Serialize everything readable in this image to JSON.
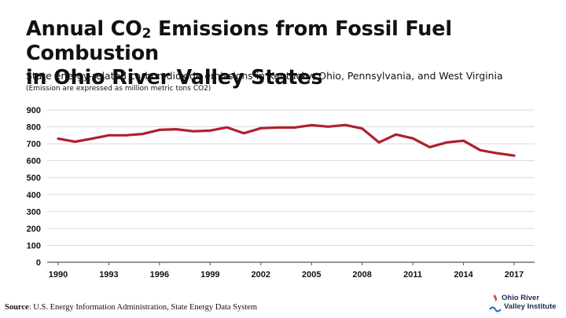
{
  "title": {
    "line1_pre": "Annual CO",
    "line1_sub": "2",
    "line1_post": " Emissions from Fossil Fuel Combustion",
    "line2": "in Ohio River Valley States"
  },
  "subtitle": "State energy-related carbon dioxide emissions in Kentucky, Ohio, Pennsylvania, and West Virginia",
  "note": "(Emission are expressed as million metric tons CO2)",
  "source": {
    "label": "Source",
    "text": ": U.S. Energy Information Administration, State Energy Data System"
  },
  "logo": {
    "line1": "Ohio River",
    "line2": "Valley Institute",
    "colors": {
      "flame": "#e8412c",
      "wave": "#2a73c8",
      "text": "#1e2a5a"
    }
  },
  "colors": {
    "line": "#b0202e",
    "grid": "#d9d9d9",
    "axis": "#555555"
  },
  "chart_data": {
    "type": "line",
    "xlabel": "",
    "ylabel": "",
    "ylim": [
      0,
      900
    ],
    "yticks": [
      0,
      100,
      200,
      300,
      400,
      500,
      600,
      700,
      800,
      900
    ],
    "xticks": [
      1990,
      1993,
      1996,
      1999,
      2002,
      2005,
      2008,
      2011,
      2014,
      2017
    ],
    "grid": "horizontal",
    "x": [
      1990,
      1991,
      1992,
      1993,
      1994,
      1995,
      1996,
      1997,
      1998,
      1999,
      2000,
      2001,
      2002,
      2003,
      2004,
      2005,
      2006,
      2007,
      2008,
      2009,
      2010,
      2011,
      2012,
      2013,
      2014,
      2015,
      2016,
      2017
    ],
    "series": [
      {
        "values": [
          730,
          712,
          730,
          750,
          750,
          758,
          782,
          786,
          774,
          778,
          797,
          762,
          792,
          796,
          796,
          810,
          801,
          811,
          790,
          708,
          755,
          732,
          680,
          708,
          718,
          662,
          644,
          630
        ]
      }
    ]
  }
}
